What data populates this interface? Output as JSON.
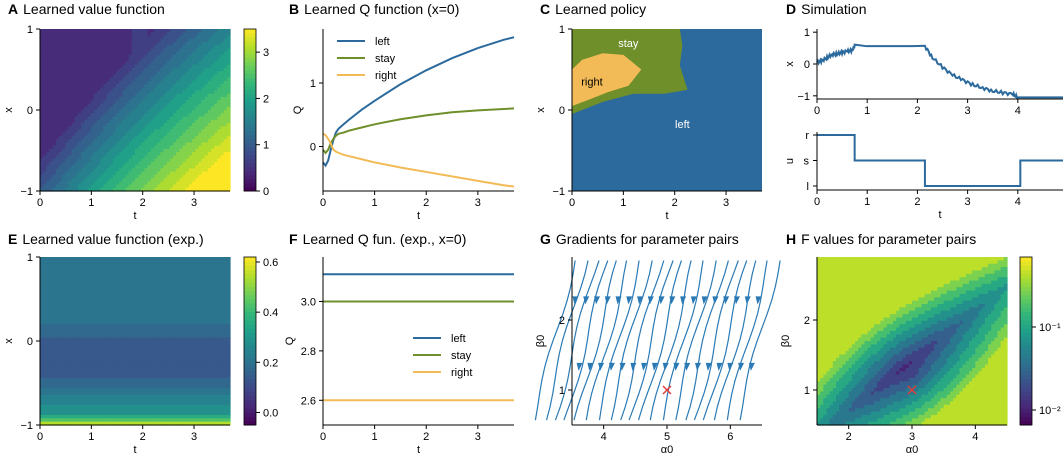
{
  "colors": {
    "left": "#2c6a9d",
    "stay": "#6f8f2b",
    "right": "#f3bb58",
    "viridis": [
      "#440154",
      "#482878",
      "#3e4989",
      "#31688e",
      "#26828e",
      "#1f9e89",
      "#35b779",
      "#6ece58",
      "#b5de2b",
      "#fde725"
    ],
    "stream": "#2a7ab5",
    "marker": "#e03c3c"
  },
  "chart_data": [
    {
      "id": "A",
      "letter": "A",
      "title": "Learned value function",
      "type": "heatmap",
      "xlabel": "t",
      "ylabel": "x",
      "xlim": [
        0,
        3.7
      ],
      "ylim": [
        -1,
        1
      ],
      "xticks": [
        "0",
        "1",
        "2",
        "3"
      ],
      "yticks": [
        "−1",
        "0",
        "1"
      ],
      "colorbar": {
        "min": 0,
        "max": 3.5,
        "ticks": [
          "0",
          "1",
          "2",
          "3"
        ]
      }
    },
    {
      "id": "B",
      "letter": "B",
      "title": "Learned Q function (x=0)",
      "type": "line",
      "xlabel": "t",
      "ylabel": "Q",
      "xlim": [
        0,
        3.7
      ],
      "ylim": [
        -0.7,
        1.85
      ],
      "xticks": [
        "0",
        "1",
        "2",
        "3"
      ],
      "yticks": [
        "0",
        "1"
      ],
      "legend": "top-left",
      "x": [
        0,
        0.05,
        0.1,
        0.15,
        0.2,
        0.25,
        0.3,
        0.4,
        0.5,
        0.75,
        1.0,
        1.5,
        2.0,
        2.5,
        3.0,
        3.5,
        3.7
      ],
      "series": [
        {
          "name": "left",
          "values": [
            -0.25,
            -0.3,
            -0.22,
            -0.05,
            0.1,
            0.22,
            0.28,
            0.35,
            0.42,
            0.58,
            0.72,
            0.98,
            1.2,
            1.39,
            1.55,
            1.68,
            1.72
          ]
        },
        {
          "name": "stay",
          "values": [
            -0.05,
            -0.1,
            -0.05,
            0.05,
            0.12,
            0.17,
            0.2,
            0.22,
            0.25,
            0.3,
            0.35,
            0.43,
            0.49,
            0.54,
            0.57,
            0.59,
            0.6
          ]
        },
        {
          "name": "right",
          "values": [
            0.2,
            0.18,
            0.12,
            0.05,
            -0.05,
            -0.08,
            -0.1,
            -0.13,
            -0.15,
            -0.2,
            -0.25,
            -0.33,
            -0.4,
            -0.47,
            -0.54,
            -0.61,
            -0.63
          ]
        }
      ]
    },
    {
      "id": "C",
      "letter": "C",
      "title": "Learned policy",
      "type": "area",
      "xlabel": "t",
      "ylabel": "x",
      "xlim": [
        0,
        3.7
      ],
      "ylim": [
        -1,
        1
      ],
      "xticks": [
        "0",
        "1",
        "2",
        "3"
      ],
      "yticks": [
        "−1",
        "0",
        "1"
      ],
      "region_labels": [
        "stay",
        "right",
        "left"
      ]
    },
    {
      "id": "D",
      "letter": "D",
      "title": "Simulation",
      "type": "line",
      "top": {
        "ylabel": "x",
        "xlim": [
          0,
          4.9
        ],
        "ylim": [
          -1.1,
          1.1
        ],
        "xticks": [
          "0",
          "1",
          "2",
          "3",
          "4"
        ],
        "yticks": [
          "−1",
          "0",
          "1"
        ],
        "x": [
          0,
          0.1,
          0.2,
          0.3,
          0.4,
          0.5,
          0.6,
          0.7,
          0.75,
          2.15,
          2.3,
          2.5,
          2.7,
          2.9,
          3.1,
          3.3,
          3.5,
          3.7,
          3.9,
          4.0,
          4.05,
          4.9
        ],
        "values": [
          0.05,
          0.1,
          0.2,
          0.3,
          0.32,
          0.36,
          0.4,
          0.42,
          0.56,
          0.56,
          0.2,
          -0.1,
          -0.35,
          -0.5,
          -0.65,
          -0.75,
          -0.85,
          -0.9,
          -0.95,
          -1.05,
          -1.05,
          -1.05
        ]
      },
      "bottom": {
        "ylabel": "u",
        "xlabel": "t",
        "xlim": [
          0,
          4.9
        ],
        "xticks": [
          "0",
          "1",
          "2",
          "3",
          "4"
        ],
        "yticks": [
          "r",
          "s",
          "l"
        ],
        "steps": [
          {
            "t0": 0,
            "t1": 0.75,
            "u": "r"
          },
          {
            "t0": 0.75,
            "t1": 2.15,
            "u": "s"
          },
          {
            "t0": 2.15,
            "t1": 4.05,
            "u": "l"
          },
          {
            "t0": 4.05,
            "t1": 4.9,
            "u": "s"
          }
        ]
      }
    },
    {
      "id": "E",
      "letter": "E",
      "title": "Learned value function (exp.)",
      "type": "heatmap",
      "xlabel": "t",
      "ylabel": "x",
      "xlim": [
        0,
        3.7
      ],
      "ylim": [
        -1,
        1
      ],
      "xticks": [
        "0",
        "1",
        "2",
        "3"
      ],
      "yticks": [
        "−1",
        "0",
        "1"
      ],
      "colorbar": {
        "min": -0.05,
        "max": 0.62,
        "ticks": [
          "0.0",
          "0.2",
          "0.4",
          "0.6"
        ]
      }
    },
    {
      "id": "F",
      "letter": "F",
      "title": "Learned Q fun. (exp., x=0)",
      "type": "line",
      "xlabel": "t",
      "ylabel": "Q",
      "xlim": [
        0,
        3.7
      ],
      "ylim": [
        2.5,
        3.18
      ],
      "xticks": [
        "0",
        "1",
        "2",
        "3"
      ],
      "yticks": [
        "2.6",
        "2.8",
        "3.0"
      ],
      "legend": "center-right",
      "series": [
        {
          "name": "left",
          "values": [
            3.11,
            3.11
          ]
        },
        {
          "name": "stay",
          "values": [
            3.0,
            3.0
          ]
        },
        {
          "name": "right",
          "values": [
            2.6,
            2.6
          ]
        }
      ]
    },
    {
      "id": "G",
      "letter": "G",
      "title": "Gradients for parameter pairs",
      "type": "scatter",
      "xlabel": "α0",
      "ylabel": "β0",
      "xlim": [
        3.5,
        6.5
      ],
      "ylim": [
        0.5,
        2.9
      ],
      "xticks": [
        "4",
        "5",
        "6"
      ],
      "yticks": [
        "1",
        "2"
      ],
      "marker": {
        "x": 5,
        "y": 1
      }
    },
    {
      "id": "H",
      "letter": "H",
      "title": "F values for parameter pairs",
      "type": "heatmap",
      "xlabel": "α0",
      "ylabel": "β0",
      "xlim": [
        1.5,
        4.5
      ],
      "ylim": [
        0.5,
        2.9
      ],
      "xticks": [
        "2",
        "3",
        "4"
      ],
      "yticks": [
        "1",
        "2"
      ],
      "marker": {
        "x": 3,
        "y": 1
      },
      "colorbar": {
        "scale": "log",
        "min": 0.005,
        "max": 0.5,
        "ticks": [
          "10⁻²",
          "10⁻¹"
        ]
      }
    }
  ]
}
